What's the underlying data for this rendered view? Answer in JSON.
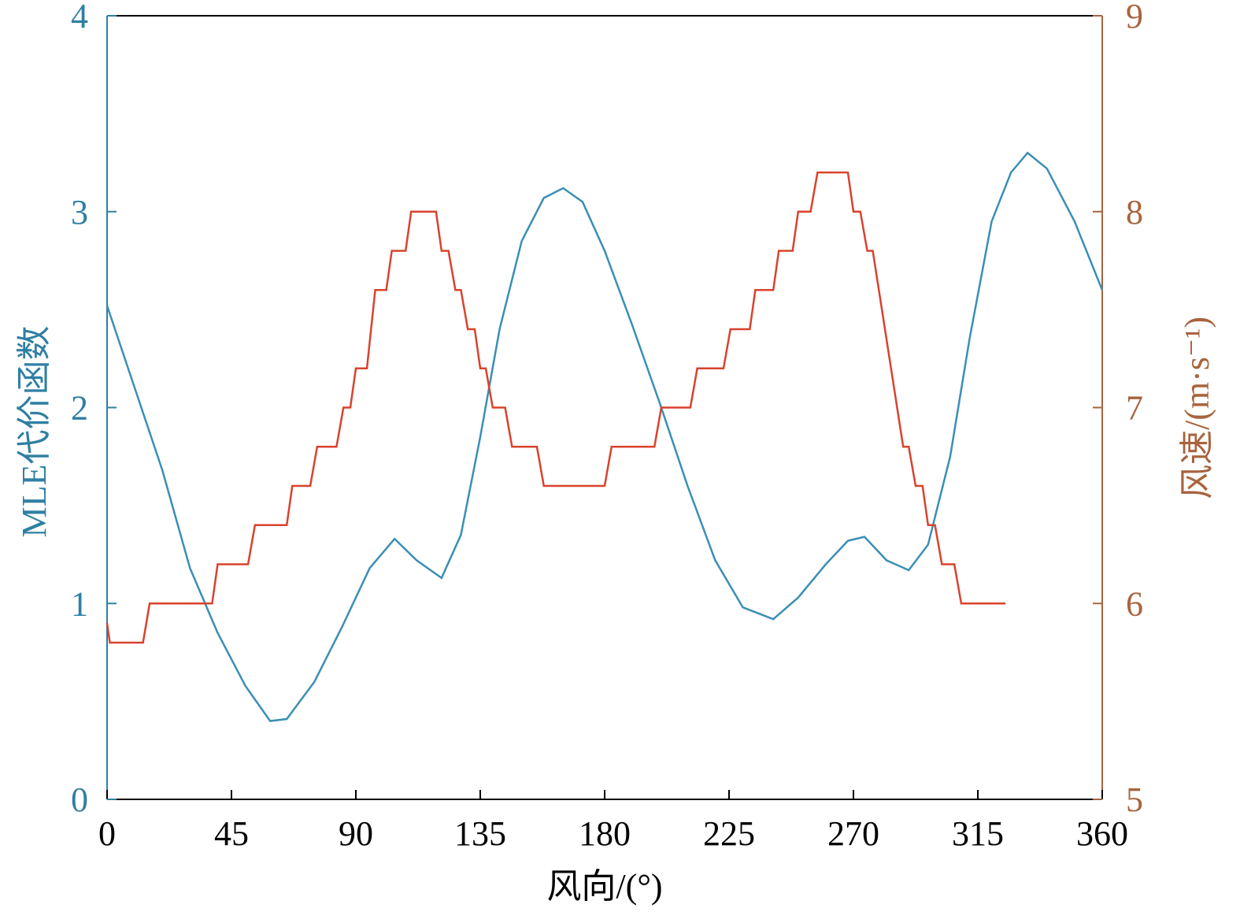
{
  "chart_data": {
    "type": "line",
    "xlabel": "风向/(°)",
    "ylabel": "MLE代价函数",
    "y2label": "风速/(m·s⁻¹)",
    "xlim": [
      0,
      360
    ],
    "xticks": [
      0,
      45,
      90,
      135,
      180,
      225,
      270,
      315,
      360
    ],
    "ylim": [
      0,
      4
    ],
    "yticks": [
      0,
      1,
      2,
      3,
      4
    ],
    "y2lim": [
      5,
      9
    ],
    "y2ticks": [
      5,
      6,
      7,
      8,
      9
    ],
    "ycolor": "#2f7fa3",
    "y2color": "#a8643e",
    "series": [
      {
        "color": "#3a8fb5",
        "x": [
          0,
          10,
          20,
          30,
          40,
          50,
          59,
          65,
          75,
          85,
          95,
          104,
          112,
          121,
          128,
          135,
          142,
          150,
          158,
          165,
          172,
          180,
          190,
          200,
          210,
          220,
          230,
          241,
          250,
          260,
          268,
          274,
          282,
          290,
          297,
          305,
          312,
          320,
          327,
          333,
          340,
          350,
          360
        ],
        "values": [
          2.52,
          2.1,
          1.68,
          1.18,
          0.85,
          0.58,
          0.4,
          0.41,
          0.6,
          0.88,
          1.18,
          1.33,
          1.22,
          1.13,
          1.35,
          1.85,
          2.4,
          2.85,
          3.07,
          3.12,
          3.05,
          2.8,
          2.42,
          2.02,
          1.6,
          1.22,
          0.98,
          0.92,
          1.03,
          1.2,
          1.32,
          1.34,
          1.22,
          1.17,
          1.3,
          1.75,
          2.35,
          2.95,
          3.2,
          3.3,
          3.22,
          2.95,
          2.6
        ]
      },
      {
        "color": "#d8432c",
        "axis": "y2",
        "x": [
          0,
          1,
          13,
          15.4,
          38,
          40,
          51,
          53.5,
          65,
          67,
          73.5,
          76,
          83,
          85.5,
          88,
          90,
          94,
          97,
          101,
          103,
          108,
          110,
          119,
          121,
          123.5,
          126,
          128,
          130.5,
          133,
          135,
          137,
          139.5,
          144,
          146.5,
          155.5,
          158,
          180,
          182.5,
          198,
          200.5,
          211,
          213.5,
          223,
          225.5,
          232.5,
          234.5,
          241,
          243,
          248,
          250,
          254.5,
          257,
          268,
          270,
          272.5,
          275,
          277,
          288,
          290,
          292.5,
          295,
          297,
          299.5,
          302,
          306.5,
          309,
          325
        ],
        "values": [
          5.9,
          5.8,
          5.8,
          6.0,
          6.0,
          6.2,
          6.2,
          6.4,
          6.4,
          6.6,
          6.6,
          6.8,
          6.8,
          7.0,
          7.0,
          7.2,
          7.2,
          7.6,
          7.6,
          7.8,
          7.8,
          8.0,
          8.0,
          7.8,
          7.8,
          7.6,
          7.6,
          7.4,
          7.4,
          7.2,
          7.2,
          7.0,
          7.0,
          6.8,
          6.8,
          6.6,
          6.6,
          6.8,
          6.8,
          7.0,
          7.0,
          7.2,
          7.2,
          7.4,
          7.4,
          7.6,
          7.6,
          7.8,
          7.8,
          8.0,
          8.0,
          8.2,
          8.2,
          8.0,
          8.0,
          7.8,
          7.8,
          6.8,
          6.8,
          6.6,
          6.6,
          6.4,
          6.4,
          6.2,
          6.2,
          6.0,
          6.0
        ]
      }
    ]
  }
}
